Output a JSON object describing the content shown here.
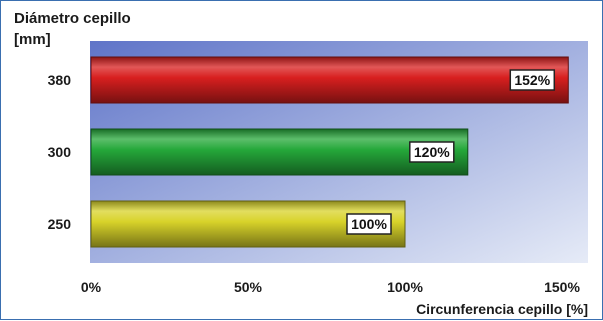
{
  "chart_data": {
    "type": "bar",
    "orientation": "horizontal",
    "ylabel_line1": "Diámetro cepillo",
    "ylabel_line2": "[mm]",
    "xlabel": "Circunferencia cepillo [%]",
    "categories": [
      "380",
      "300",
      "250"
    ],
    "values": [
      152,
      120,
      100
    ],
    "data_labels": [
      "152%",
      "120%",
      "100%"
    ],
    "xlim": [
      0,
      160
    ],
    "xticks": [
      0,
      50,
      100,
      150
    ],
    "xtick_labels": [
      "0%",
      "50%",
      "100%",
      "150%"
    ],
    "colors": [
      "#d81f1f",
      "#25a83a",
      "#d8d32a"
    ],
    "grid": false,
    "legend": "none"
  }
}
